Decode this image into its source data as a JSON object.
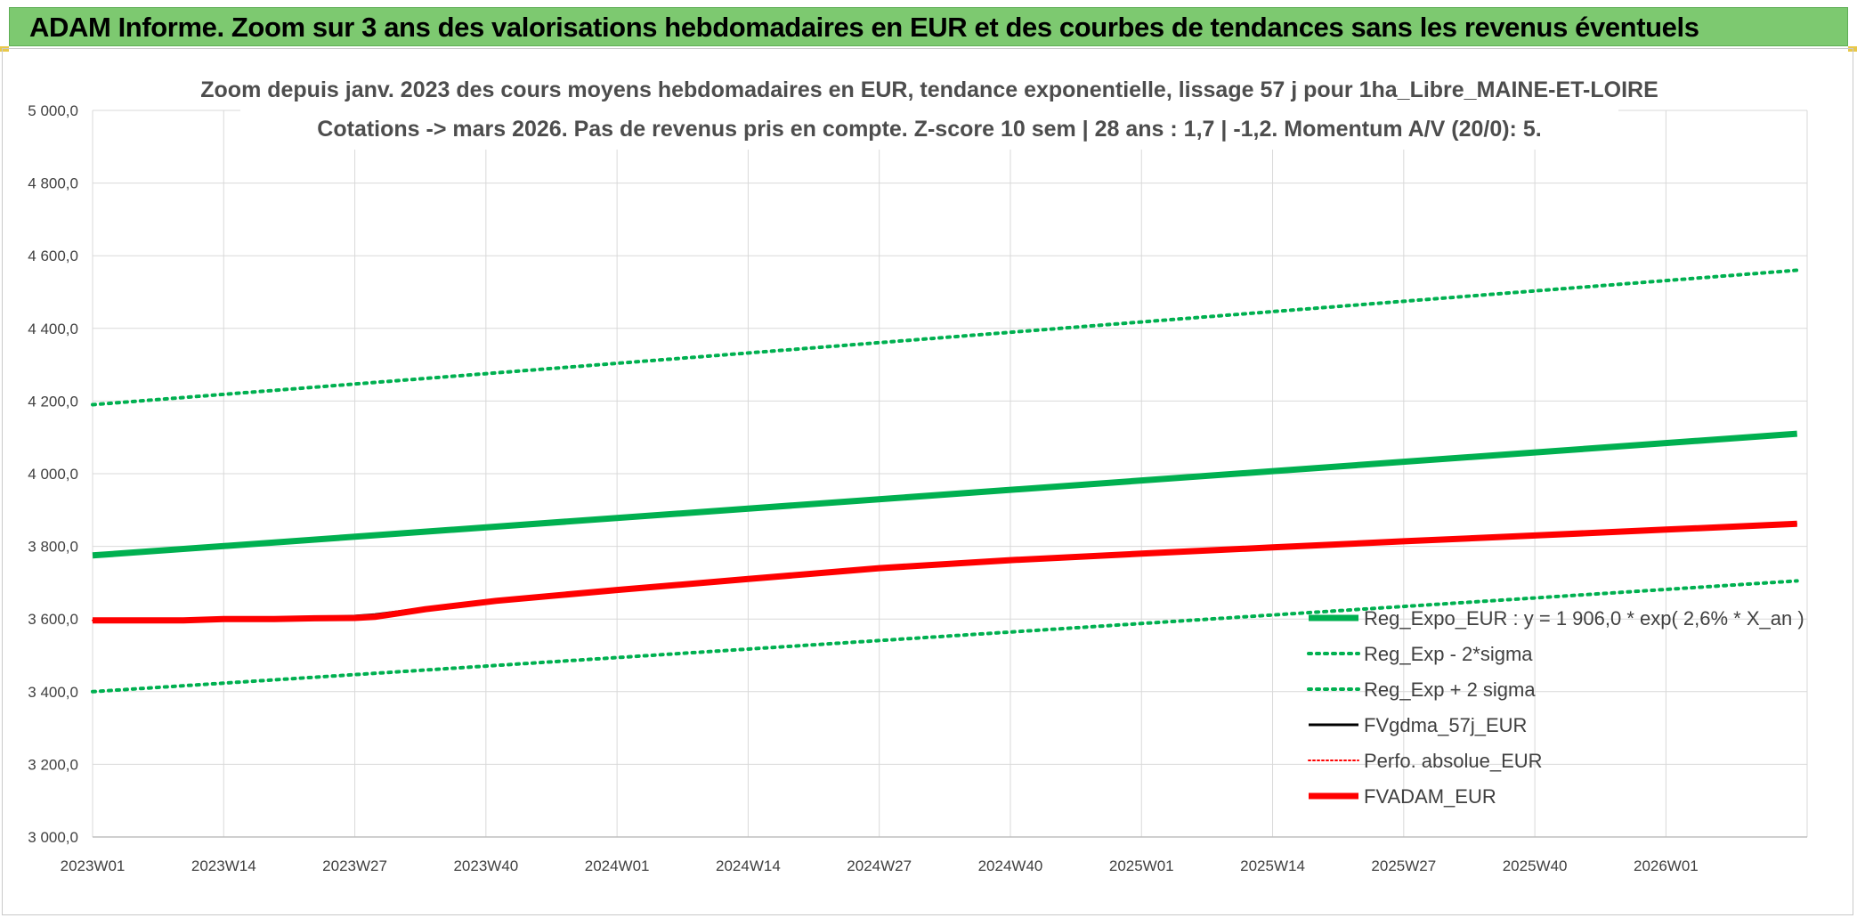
{
  "banner": {
    "title": "ADAM Informe. Zoom sur 3 ans des valorisations hebdomadaires en EUR et des courbes de tendances sans les revenus éventuels"
  },
  "chart_data": {
    "type": "line",
    "title": "Zoom depuis janv. 2023 des cours moyens hebdomadaires en EUR, tendance exponentielle, lissage 57 j pour 1ha_Libre_MAINE-ET-LOIRE",
    "subtitle": "Cotations -> mars 2026. Pas de revenus pris en compte. Z-score 10 sem | 28 ans : 1,7 | -1,2. Momentum A/V (20/0): 5.",
    "xlabel": "",
    "ylabel": "",
    "x_tick_labels": [
      "2023W01",
      "2023W14",
      "2023W27",
      "2023W40",
      "2024W01",
      "2024W14",
      "2024W27",
      "2024W40",
      "2025W01",
      "2025W14",
      "2025W27",
      "2025W40",
      "2026W01"
    ],
    "y_tick_labels": [
      "3 000,0",
      "3 200,0",
      "3 400,0",
      "3 600,0",
      "3 800,0",
      "4 000,0",
      "4 200,0",
      "4 400,0",
      "4 600,0",
      "4 800,0",
      "5 000,0"
    ],
    "ylim": [
      3000,
      5000
    ],
    "x_weeks_total": 170,
    "grid": true,
    "legend_position": "right",
    "series": [
      {
        "name": "Reg_Expo_EUR : y = 1 906,0 * exp( 2,6% *  X_an )",
        "color": "#00b050",
        "style": "solid",
        "width": 7,
        "points": [
          [
            0,
            3775
          ],
          [
            169,
            4110
          ]
        ]
      },
      {
        "name": "Reg_Exp - 2*sigma",
        "color": "#00b050",
        "style": "dotted",
        "width": 4,
        "points": [
          [
            0,
            3400
          ],
          [
            169,
            3705
          ]
        ]
      },
      {
        "name": "Reg_Exp + 2 sigma",
        "color": "#00b050",
        "style": "dotted",
        "width": 4,
        "points": [
          [
            0,
            4190
          ],
          [
            169,
            4560
          ]
        ]
      },
      {
        "name": "FVgdma_57j_EUR",
        "color": "#000000",
        "style": "solid",
        "width": 3,
        "points": [
          [
            0,
            3596
          ],
          [
            9,
            3596
          ],
          [
            13,
            3600
          ],
          [
            18,
            3600
          ],
          [
            22,
            3604
          ],
          [
            26,
            3608
          ],
          [
            28,
            3612
          ],
          [
            33,
            3630
          ],
          [
            40,
            3650
          ],
          [
            52,
            3680
          ],
          [
            65,
            3710
          ],
          [
            78,
            3742
          ],
          [
            91,
            3763
          ],
          [
            104,
            3780
          ],
          [
            117,
            3797
          ],
          [
            130,
            3814
          ],
          [
            143,
            3830
          ],
          [
            156,
            3846
          ],
          [
            169,
            3862
          ]
        ]
      },
      {
        "name": "Perfo. absolue_EUR",
        "color": "#ff0000",
        "style": "dotted",
        "width": 2,
        "points": [
          [
            0,
            3596
          ],
          [
            9,
            3596
          ],
          [
            13,
            3600
          ],
          [
            18,
            3600
          ],
          [
            22,
            3602
          ],
          [
            26,
            3603
          ],
          [
            28,
            3606
          ],
          [
            33,
            3627
          ],
          [
            40,
            3650
          ],
          [
            52,
            3680
          ],
          [
            65,
            3710
          ],
          [
            78,
            3740
          ],
          [
            91,
            3762
          ],
          [
            104,
            3780
          ],
          [
            117,
            3797
          ],
          [
            130,
            3814
          ],
          [
            143,
            3830
          ],
          [
            156,
            3846
          ],
          [
            169,
            3862
          ]
        ]
      },
      {
        "name": "FVADAM_EUR",
        "color": "#ff0000",
        "style": "solid",
        "width": 7,
        "points": [
          [
            0,
            3596
          ],
          [
            9,
            3596
          ],
          [
            13,
            3600
          ],
          [
            18,
            3600
          ],
          [
            22,
            3602
          ],
          [
            26,
            3603
          ],
          [
            28,
            3606
          ],
          [
            33,
            3627
          ],
          [
            40,
            3650
          ],
          [
            52,
            3680
          ],
          [
            65,
            3710
          ],
          [
            78,
            3740
          ],
          [
            91,
            3762
          ],
          [
            104,
            3780
          ],
          [
            117,
            3797
          ],
          [
            130,
            3814
          ],
          [
            143,
            3830
          ],
          [
            156,
            3846
          ],
          [
            169,
            3862
          ]
        ]
      }
    ]
  }
}
